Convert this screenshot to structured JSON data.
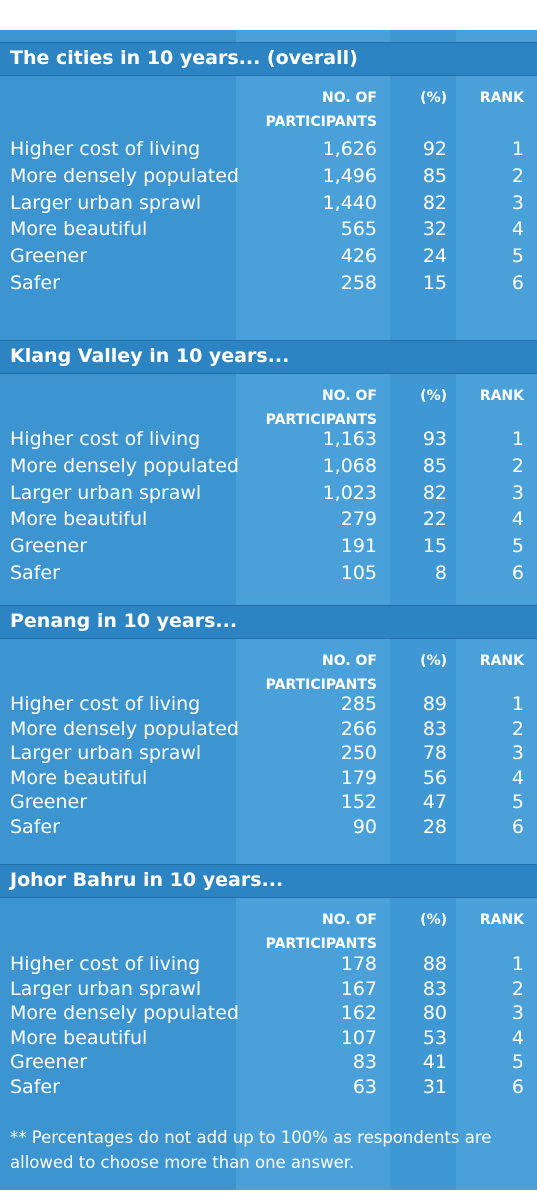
{
  "col_headers": {
    "participants_1": "NO. OF",
    "participants_2": "PARTICIPANTS",
    "percent": "(%)",
    "rank": "RANK"
  },
  "sections": [
    {
      "title": "The cities in 10 years... (overall)",
      "rows": [
        {
          "label": "Higher cost of living",
          "participants": "1,626",
          "percent": "92",
          "rank": "1"
        },
        {
          "label": "More densely populated",
          "participants": "1,496",
          "percent": "85",
          "rank": "2"
        },
        {
          "label": "Larger urban sprawl",
          "participants": "1,440",
          "percent": "82",
          "rank": "3"
        },
        {
          "label": "More beautiful",
          "participants": "565",
          "percent": "32",
          "rank": "4"
        },
        {
          "label": "Greener",
          "participants": "426",
          "percent": "24",
          "rank": "5"
        },
        {
          "label": "Safer",
          "participants": "258",
          "percent": "15",
          "rank": "6"
        }
      ]
    },
    {
      "title": "Klang Valley in 10 years...",
      "rows": [
        {
          "label": "Higher cost of living",
          "participants": "1,163",
          "percent": "93",
          "rank": "1"
        },
        {
          "label": "More densely populated",
          "participants": "1,068",
          "percent": "85",
          "rank": "2"
        },
        {
          "label": "Larger urban sprawl",
          "participants": "1,023",
          "percent": "82",
          "rank": "3"
        },
        {
          "label": "More beautiful",
          "participants": "279",
          "percent": "22",
          "rank": "4"
        },
        {
          "label": "Greener",
          "participants": "191",
          "percent": "15",
          "rank": "5"
        },
        {
          "label": "Safer",
          "participants": "105",
          "percent": "8",
          "rank": "6"
        }
      ]
    },
    {
      "title": "Penang in 10 years...",
      "rows": [
        {
          "label": "Higher cost of living",
          "participants": "285",
          "percent": "89",
          "rank": "1"
        },
        {
          "label": "More densely populated",
          "participants": "266",
          "percent": "83",
          "rank": "2"
        },
        {
          "label": "Larger urban sprawl",
          "participants": "250",
          "percent": "78",
          "rank": "3"
        },
        {
          "label": "More beautiful",
          "participants": "179",
          "percent": "56",
          "rank": "4"
        },
        {
          "label": "Greener",
          "participants": "152",
          "percent": "47",
          "rank": "5"
        },
        {
          "label": "Safer",
          "participants": "90",
          "percent": "28",
          "rank": "6"
        }
      ]
    },
    {
      "title": "Johor Bahru in 10 years...",
      "rows": [
        {
          "label": "Higher cost of living",
          "participants": "178",
          "percent": "88",
          "rank": "1"
        },
        {
          "label": "Larger urban sprawl",
          "participants": "167",
          "percent": "83",
          "rank": "2"
        },
        {
          "label": "More densely populated",
          "participants": "162",
          "percent": "80",
          "rank": "3"
        },
        {
          "label": "More beautiful",
          "participants": "107",
          "percent": "53",
          "rank": "4"
        },
        {
          "label": "Greener",
          "participants": "83",
          "percent": "41",
          "rank": "5"
        },
        {
          "label": "Safer",
          "participants": "63",
          "percent": "31",
          "rank": "6"
        }
      ]
    }
  ],
  "footnote": "** Percentages do not add up to 100% as respondents are allowed to choose more than one answer.",
  "colors": {
    "panel": "#3c94d0",
    "band": "#4aa1da",
    "title_bar": "#2d84c2",
    "text": "#ffffff"
  }
}
